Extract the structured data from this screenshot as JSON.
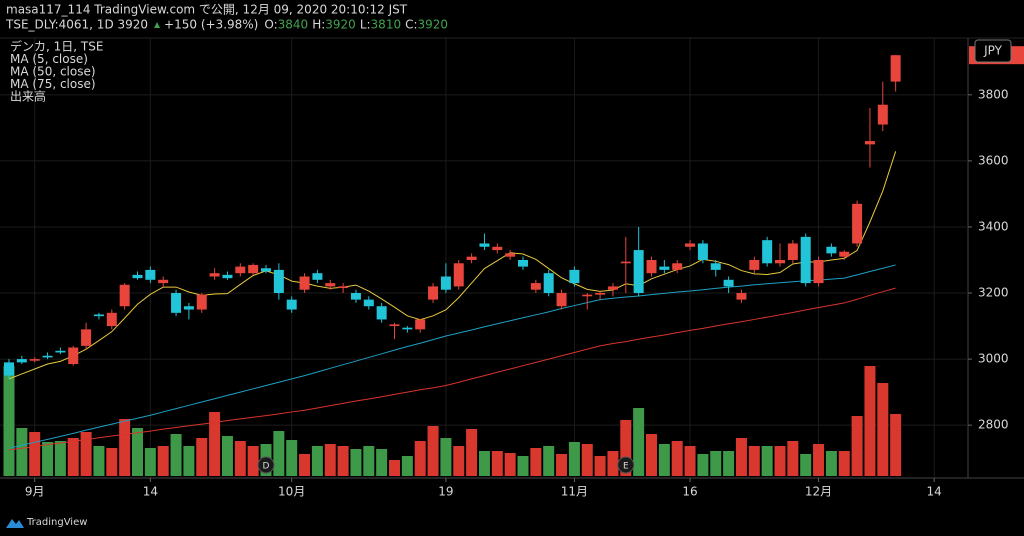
{
  "header": {
    "line1": "masa117_114 TradingView.com で公開, 12月 09, 2020 20:10:12 JST",
    "symbol": "TSE_DLY:4061, 1D 3920",
    "change": "+150 (+3.98%)",
    "ohlc": [
      {
        "key": "O:",
        "value": 3840
      },
      {
        "key": "H:",
        "value": 3920
      },
      {
        "key": "L:",
        "value": 3810
      },
      {
        "key": "C:",
        "value": 3920
      }
    ]
  },
  "footer": "TradingView",
  "chart_data": {
    "type": "candlestick",
    "legend": [
      "デンカ, 1日, TSE",
      "MA (5, close)",
      "MA (50, close)",
      "MA (75, close)",
      "出来高"
    ],
    "currency": "JPY",
    "up_color": "#e8453c",
    "down_color": "#22c4d8",
    "volume_up_color": "#d9382f",
    "volume_down_color": "#3e9a48",
    "ylim": [
      2640,
      3972
    ],
    "yticks": [
      2800,
      3000,
      3200,
      3400,
      3600,
      3800
    ],
    "grid": true,
    "xticks": [
      {
        "value": 2,
        "label": "9月"
      },
      {
        "value": 11,
        "label": "14"
      },
      {
        "value": 22,
        "label": "10月"
      },
      {
        "value": 34,
        "label": "19"
      },
      {
        "value": 44,
        "label": "11月"
      },
      {
        "value": 53,
        "label": "16"
      },
      {
        "value": 63,
        "label": "12月"
      },
      {
        "value": 72,
        "label": "14"
      }
    ],
    "events": [
      {
        "index": 20,
        "label": "D"
      },
      {
        "index": 48,
        "label": "E"
      }
    ],
    "open": [
      2990,
      3000,
      2995,
      3010,
      3025,
      2985,
      3040,
      3135,
      3100,
      3160,
      3255,
      3270,
      3230,
      3200,
      3160,
      3150,
      3250,
      3255,
      3260,
      3260,
      3275,
      3270,
      3180,
      3210,
      3260,
      3220,
      3215,
      3200,
      3180,
      3160,
      3100,
      3095,
      3090,
      3180,
      3250,
      3220,
      3300,
      3350,
      3330,
      3310,
      3300,
      3210,
      3260,
      3160,
      3270,
      3190,
      3195,
      3210,
      3290,
      3330,
      3260,
      3280,
      3270,
      3340,
      3350,
      3290,
      3240,
      3180,
      3270,
      3360,
      3290,
      3300,
      3370,
      3230,
      3340,
      3310,
      3350,
      3650,
      3710,
      3840
    ],
    "high": [
      3000,
      3010,
      3005,
      3020,
      3035,
      3040,
      3110,
      3140,
      3150,
      3230,
      3265,
      3280,
      3250,
      3210,
      3170,
      3200,
      3275,
      3265,
      3290,
      3290,
      3285,
      3290,
      3190,
      3260,
      3270,
      3240,
      3230,
      3210,
      3190,
      3170,
      3110,
      3100,
      3120,
      3230,
      3290,
      3300,
      3320,
      3380,
      3350,
      3330,
      3310,
      3240,
      3270,
      3210,
      3280,
      3200,
      3205,
      3230,
      3370,
      3400,
      3310,
      3300,
      3300,
      3360,
      3360,
      3300,
      3250,
      3210,
      3310,
      3370,
      3350,
      3360,
      3380,
      3310,
      3350,
      3330,
      3480,
      3760,
      3840,
      3920
    ],
    "low": [
      2940,
      2985,
      2990,
      3000,
      3015,
      2980,
      3030,
      3120,
      3090,
      3150,
      3240,
      3230,
      3220,
      3130,
      3120,
      3140,
      3240,
      3240,
      3250,
      3255,
      3260,
      3180,
      3140,
      3200,
      3230,
      3210,
      3200,
      3170,
      3150,
      3110,
      3060,
      3080,
      3080,
      3170,
      3200,
      3210,
      3290,
      3330,
      3320,
      3300,
      3270,
      3200,
      3190,
      3150,
      3220,
      3150,
      3180,
      3190,
      3200,
      3190,
      3250,
      3260,
      3260,
      3330,
      3290,
      3250,
      3200,
      3170,
      3260,
      3280,
      3280,
      3290,
      3220,
      3220,
      3310,
      3300,
      3340,
      3580,
      3690,
      3810
    ],
    "close": [
      2950,
      2990,
      3000,
      3005,
      3020,
      3035,
      3090,
      3130,
      3140,
      3225,
      3245,
      3240,
      3240,
      3140,
      3150,
      3195,
      3260,
      3245,
      3280,
      3285,
      3265,
      3200,
      3150,
      3250,
      3240,
      3230,
      3220,
      3180,
      3160,
      3120,
      3105,
      3090,
      3120,
      3220,
      3210,
      3290,
      3310,
      3340,
      3340,
      3320,
      3280,
      3230,
      3200,
      3200,
      3230,
      3195,
      3200,
      3220,
      3295,
      3200,
      3300,
      3270,
      3290,
      3350,
      3300,
      3270,
      3220,
      3200,
      3300,
      3290,
      3300,
      3350,
      3230,
      3300,
      3320,
      3325,
      3470,
      3660,
      3770,
      3920
    ],
    "volume": [
      110,
      48,
      44,
      34,
      35,
      38,
      44,
      30,
      28,
      57,
      48,
      28,
      30,
      42,
      30,
      38,
      64,
      40,
      35,
      30,
      32,
      45,
      36,
      22,
      30,
      32,
      30,
      27,
      30,
      27,
      16,
      20,
      35,
      50,
      38,
      30,
      47,
      25,
      25,
      23,
      20,
      28,
      30,
      22,
      34,
      32,
      20,
      25,
      56,
      68,
      42,
      32,
      35,
      30,
      22,
      25,
      25,
      38,
      30,
      30,
      30,
      35,
      22,
      32,
      25,
      25,
      60,
      110,
      93,
      62
    ],
    "series": [
      {
        "name": "MA (5, close)",
        "color": "#e8c93c",
        "values": [
          2940,
          2955,
          2970,
          2985,
          2993,
          3010,
          3030,
          3056,
          3083,
          3124,
          3166,
          3196,
          3218,
          3218,
          3203,
          3193,
          3197,
          3198,
          3226,
          3253,
          3267,
          3255,
          3236,
          3230,
          3221,
          3214,
          3218,
          3224,
          3206,
          3182,
          3157,
          3131,
          3119,
          3131,
          3149,
          3186,
          3230,
          3274,
          3298,
          3322,
          3318,
          3302,
          3274,
          3246,
          3228,
          3211,
          3205,
          3209,
          3228,
          3222,
          3243,
          3257,
          3271,
          3282,
          3302,
          3296,
          3286,
          3268,
          3258,
          3256,
          3262,
          3288,
          3294,
          3294,
          3300,
          3305,
          3329,
          3415,
          3509,
          3629
        ]
      },
      {
        "name": "MA (50, close)",
        "color": "#1ea0c4",
        "values": [
          2730,
          2739,
          2748,
          2757,
          2766,
          2775,
          2785,
          2794,
          2803,
          2812,
          2821,
          2830,
          2840,
          2850,
          2860,
          2870,
          2880,
          2890,
          2900,
          2910,
          2920,
          2930,
          2940,
          2950,
          2961,
          2972,
          2983,
          2994,
          3005,
          3016,
          3027,
          3038,
          3048,
          3059,
          3070,
          3079,
          3088,
          3098,
          3107,
          3116,
          3125,
          3134,
          3143,
          3153,
          3162,
          3171,
          3180,
          3184,
          3188,
          3191,
          3195,
          3199,
          3203,
          3206,
          3210,
          3214,
          3218,
          3221,
          3225,
          3228,
          3231,
          3234,
          3237,
          3239,
          3242,
          3245,
          3255,
          3265,
          3275,
          3285
        ]
      },
      {
        "name": "MA (75, close)",
        "color": "#d8342c",
        "values": [
          2725,
          2730,
          2735,
          2741,
          2746,
          2751,
          2756,
          2762,
          2767,
          2772,
          2777,
          2782,
          2788,
          2793,
          2798,
          2803,
          2808,
          2814,
          2819,
          2824,
          2829,
          2834,
          2840,
          2845,
          2852,
          2859,
          2866,
          2873,
          2879,
          2886,
          2893,
          2900,
          2907,
          2913,
          2920,
          2930,
          2940,
          2950,
          2960,
          2970,
          2980,
          2990,
          3000,
          3010,
          3020,
          3030,
          3040,
          3047,
          3053,
          3060,
          3067,
          3073,
          3080,
          3087,
          3093,
          3100,
          3107,
          3113,
          3120,
          3127,
          3134,
          3141,
          3149,
          3156,
          3163,
          3170,
          3181,
          3193,
          3204,
          3215
        ]
      }
    ]
  }
}
